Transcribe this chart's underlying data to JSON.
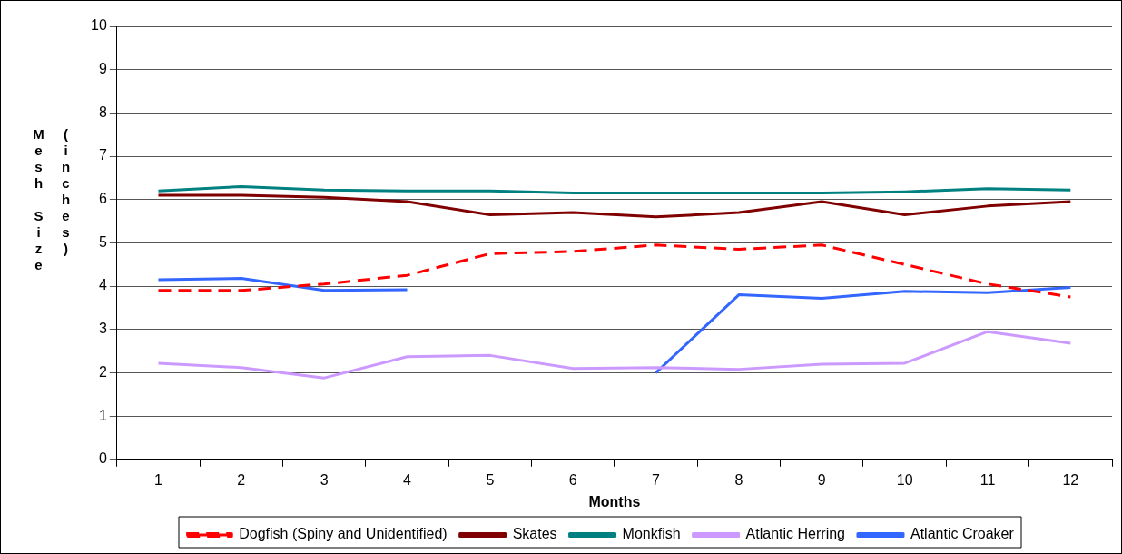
{
  "chart_data": {
    "type": "line",
    "xlabel": "Months",
    "ylabel": "Mesh Size (inches)",
    "categories": [
      "1",
      "2",
      "3",
      "4",
      "5",
      "6",
      "7",
      "8",
      "9",
      "10",
      "11",
      "12"
    ],
    "ylim": [
      0,
      10
    ],
    "yticks": [
      0,
      1,
      2,
      3,
      4,
      5,
      6,
      7,
      8,
      9,
      10
    ],
    "grid": "y",
    "legend": "bottom",
    "marker": "none",
    "series": [
      {
        "name": "Dogfish (Spiny and Unidentified)",
        "color": "#ff0000",
        "line_style": "dashed",
        "values": [
          3.9,
          3.9,
          4.05,
          4.25,
          4.75,
          4.8,
          4.95,
          4.85,
          4.95,
          4.5,
          4.05,
          3.75
        ]
      },
      {
        "name": "Skates",
        "color": "#800000",
        "values": [
          6.1,
          6.1,
          6.05,
          5.95,
          5.65,
          5.7,
          5.6,
          5.7,
          5.95,
          5.65,
          5.85,
          5.95
        ]
      },
      {
        "name": "Monkfish",
        "color": "#008080",
        "values": [
          6.2,
          6.3,
          6.22,
          6.2,
          6.2,
          6.15,
          6.15,
          6.15,
          6.15,
          6.18,
          6.25,
          6.22
        ]
      },
      {
        "name": "Atlantic Herring",
        "color": "#cc99ff",
        "values": [
          2.22,
          2.12,
          1.88,
          2.37,
          2.4,
          2.1,
          2.12,
          2.08,
          2.2,
          2.22,
          2.95,
          2.68
        ]
      },
      {
        "name": "Atlantic Croaker",
        "color": "#3366ff",
        "values": [
          4.15,
          4.18,
          3.9,
          3.92,
          null,
          null,
          2.0,
          3.8,
          3.72,
          3.88,
          3.85,
          3.97
        ]
      }
    ]
  }
}
